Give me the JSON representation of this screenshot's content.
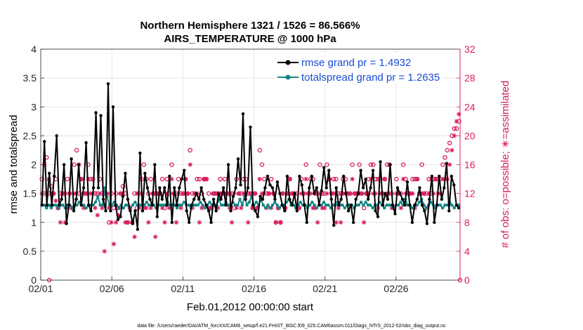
{
  "chart_data": {
    "type": "line",
    "title_line1": "Northern Hemisphere 1321 / 1526 = 86.566%",
    "title_line2": "AIRS_TEMPERATURE @ 1000 hPa",
    "xlabel": "Feb.01,2012 00:00:00 start",
    "ylabel_left": "rmse and totalspread",
    "ylabel_right": "# of obs: o=possible; ∗=assimilated",
    "xlim": [
      0,
      29.5
    ],
    "ylim_left": [
      0,
      4
    ],
    "ylim_right": [
      0,
      32
    ],
    "x_ticks": [
      0,
      5,
      10,
      15,
      20,
      25
    ],
    "x_tick_labels": [
      "02/01",
      "02/06",
      "02/11",
      "02/16",
      "02/21",
      "02/26"
    ],
    "y_ticks_left": [
      "0",
      "0.5",
      "1",
      "1.5",
      "2",
      "2.5",
      "3",
      "3.5",
      "4"
    ],
    "y_ticks_right": [
      "0",
      "4",
      "8",
      "12",
      "16",
      "20",
      "24",
      "28",
      "32"
    ],
    "colors": {
      "rmse": "#000000",
      "spread": "#138585",
      "obs": "#d81b60",
      "legend_text": "#1a4bd6"
    },
    "series": [
      {
        "name": "rmse grand pr = 1.4932",
        "values": [
          1.3,
          2.4,
          1.3,
          1.85,
          1.3,
          1.8,
          2.5,
          1.3,
          1.4,
          2.0,
          0.98,
          1.3,
          2.1,
          1.2,
          1.4,
          2.0,
          1.3,
          1.6,
          2.38,
          1.3,
          1.2,
          1.6,
          2.9,
          1.6,
          2.85,
          1.4,
          1.2,
          3.4,
          1.2,
          3.0,
          1.3,
          1.05,
          1.1,
          1.45,
          1.85,
          1.4,
          1.2,
          0.98,
          1.2,
          0.88,
          2.2,
          1.2,
          1.85,
          1.6,
          1.4,
          1.3,
          2.0,
          1.1,
          1.6,
          1.4,
          1.6,
          1.3,
          1.8,
          1.0,
          1.6,
          1.3,
          1.6,
          1.75,
          1.9,
          1.2,
          1.0,
          1.3,
          1.4,
          1.5,
          1.4,
          1.6,
          1.4,
          1.3,
          1.2,
          1.0,
          1.4,
          1.2,
          1.5,
          1.4,
          1.6,
          1.3,
          2.0,
          1.2,
          1.45,
          1.6,
          2.1,
          1.65,
          2.88,
          1.4,
          1.6,
          2.65,
          1.3,
          1.2,
          1.1,
          1.45,
          1.4,
          1.6,
          1.8,
          1.65,
          1.6,
          1.4,
          1.7,
          1.5,
          1.3,
          1.2,
          1.8,
          1.4,
          1.3,
          1.5,
          1.2,
          1.8,
          1.65,
          1.3,
          1.0,
          1.6,
          1.8,
          1.5,
          1.6,
          1.3,
          1.55,
          1.95,
          1.6,
          1.9,
          1.4,
          0.95,
          1.6,
          1.3,
          1.4,
          1.8,
          1.5,
          1.2,
          1.3,
          1.0,
          1.4,
          1.5,
          1.9,
          1.6,
          1.75,
          1.4,
          1.6,
          1.9,
          1.2,
          1.1,
          2.05,
          1.3,
          1.5,
          1.4,
          2.0,
          1.3,
          1.15,
          1.6,
          1.5,
          1.4,
          1.3,
          1.7,
          1.3,
          1.0,
          1.3,
          1.4,
          1.6,
          1.3,
          1.2,
          0.98,
          1.4,
          1.8,
          1.0,
          1.3,
          1.8,
          1.4,
          1.6,
          2.02,
          1.2,
          1.8,
          1.65,
          1.3,
          1.25
        ]
      },
      {
        "name": "totalspread grand pr = 1.2635",
        "values": [
          1.3,
          1.3,
          1.25,
          1.3,
          1.25,
          1.3,
          1.3,
          1.25,
          1.3,
          1.3,
          1.25,
          1.3,
          1.3,
          1.25,
          1.3,
          1.3,
          1.35,
          1.3,
          1.3,
          1.25,
          1.3,
          1.3,
          1.3,
          1.35,
          1.45,
          1.3,
          1.3,
          1.6,
          1.45,
          1.3,
          1.3,
          1.35,
          1.3,
          1.25,
          1.3,
          1.25,
          1.3,
          1.3,
          1.25,
          1.3,
          1.35,
          1.3,
          1.3,
          1.3,
          1.3,
          1.35,
          1.3,
          1.3,
          1.3,
          1.25,
          1.3,
          1.3,
          1.3,
          1.3,
          1.35,
          1.3,
          1.3,
          1.3,
          1.25,
          1.3,
          1.3,
          1.35,
          1.3,
          1.3,
          1.25,
          1.3,
          1.3,
          1.3,
          1.35,
          1.3,
          1.25,
          1.3,
          1.35,
          1.3,
          1.3,
          1.3,
          1.4,
          1.3,
          1.3,
          1.35,
          1.3,
          1.3,
          1.35,
          1.3,
          1.3,
          1.4,
          1.3,
          1.45,
          1.3,
          1.35,
          1.45,
          1.3,
          1.35,
          1.3,
          1.4,
          1.3,
          1.25,
          1.3,
          1.25,
          1.3,
          1.35,
          1.3,
          1.25,
          1.3,
          1.3,
          1.35,
          1.4,
          1.3,
          1.3,
          1.25,
          1.3,
          1.35,
          1.3,
          1.3,
          1.25,
          1.3,
          1.35,
          1.3,
          1.25,
          1.3,
          1.3,
          1.35,
          1.3,
          1.3,
          1.25,
          1.3,
          1.3,
          1.35,
          1.3,
          1.3,
          1.25,
          1.3,
          1.3,
          1.3,
          1.25,
          1.3,
          1.3,
          1.35,
          1.3,
          1.35,
          1.3,
          1.3,
          1.25,
          1.3,
          1.3,
          1.35,
          1.3,
          1.25,
          1.3,
          1.3,
          1.3,
          1.25,
          1.3,
          1.3,
          1.35,
          1.3,
          1.4,
          1.3,
          1.3,
          1.25,
          1.3,
          1.3,
          1.35,
          1.4,
          1.3,
          1.25,
          1.3,
          1.35,
          1.3,
          1.25,
          1.3,
          1.3,
          1.25,
          1.3,
          1.3,
          1.35,
          1.3,
          1.25,
          1.3,
          1.3
        ]
      }
    ],
    "obs_possible": [
      14,
      12,
      17,
      12,
      13,
      12,
      14,
      10,
      12,
      12,
      12,
      14,
      12,
      10,
      16,
      18,
      12,
      14,
      12,
      12,
      16,
      14,
      14,
      12,
      12,
      14,
      12,
      12,
      12,
      8,
      12,
      10,
      12,
      10,
      12,
      13,
      12,
      8,
      10,
      8,
      12,
      10,
      12,
      14,
      16,
      14,
      12,
      14,
      12,
      12,
      12,
      12,
      14,
      10,
      14,
      12,
      16,
      12,
      12,
      14,
      12,
      12,
      14,
      12,
      18,
      12,
      12,
      14,
      14,
      12,
      14,
      14,
      12,
      10,
      12,
      12,
      12,
      14,
      12,
      14,
      12,
      12,
      12,
      10,
      14,
      12,
      12,
      14,
      14,
      12,
      12,
      10,
      12,
      10,
      18,
      16,
      14,
      12,
      12,
      14,
      12,
      8,
      10,
      8,
      12,
      10,
      12,
      14,
      12,
      12,
      12,
      10,
      14,
      12,
      16,
      12,
      14,
      14,
      12,
      12,
      16,
      12,
      12,
      16,
      14,
      12,
      14,
      14,
      12,
      12,
      14,
      14,
      12,
      12,
      16,
      12,
      12,
      16,
      12,
      10,
      12,
      14,
      16,
      16,
      14,
      14,
      14,
      12,
      14,
      16,
      16,
      12,
      10,
      14,
      12,
      12,
      16,
      14,
      12,
      12,
      14,
      14,
      14,
      12,
      16,
      12,
      12,
      14,
      12,
      14,
      14,
      14,
      14,
      16,
      17,
      18,
      19,
      20,
      21,
      21,
      22
    ],
    "obs_assimilated": [
      12,
      16,
      12,
      14,
      12,
      12,
      11,
      10,
      8,
      12,
      8,
      10,
      12,
      10,
      12,
      12,
      16,
      14,
      10,
      12,
      14,
      12,
      12,
      10,
      9,
      12,
      10,
      4,
      12,
      10,
      8,
      5,
      8,
      9,
      12,
      12,
      8,
      8,
      10,
      8,
      6,
      12,
      10,
      12,
      10,
      10,
      8,
      10,
      12,
      6,
      12,
      12,
      10,
      8,
      12,
      10,
      14,
      12,
      8,
      12,
      10,
      12,
      14,
      12,
      16,
      10,
      12,
      12,
      8,
      10,
      14,
      14,
      10,
      10,
      12,
      12,
      10,
      12,
      12,
      12,
      12,
      10,
      8,
      12,
      10,
      12,
      10,
      12,
      12,
      8,
      12,
      10,
      12,
      10,
      14,
      12,
      12,
      10,
      12,
      10,
      12,
      8,
      10,
      8,
      12,
      10,
      12,
      14,
      12,
      12,
      10,
      10,
      12,
      12,
      14,
      12,
      12,
      10,
      10,
      8,
      12,
      10,
      10,
      12,
      14,
      12,
      12,
      8,
      10,
      8,
      12,
      12,
      12,
      12,
      14,
      12,
      12,
      12,
      12,
      8,
      12,
      12,
      14,
      12,
      12,
      10,
      12,
      12,
      14,
      12,
      12,
      10,
      10,
      12,
      12,
      10,
      14,
      12,
      12,
      12,
      12,
      10,
      14,
      12,
      12,
      12,
      10,
      12,
      14,
      12,
      14,
      12,
      12,
      14,
      14,
      14,
      16,
      18,
      20,
      22,
      23
    ],
    "obs_possible_extra": [
      [
        0.6,
        0
      ],
      [
        29.5,
        0
      ]
    ],
    "footnote": "data file: /Users/raeder/DAI/ATM_forcXX/CAM6_setup/f.e21.FHIST_BGC.f09_025.CAM6assim.011/Diags_NTrS_2012-02/obs_diag_output.nc"
  }
}
